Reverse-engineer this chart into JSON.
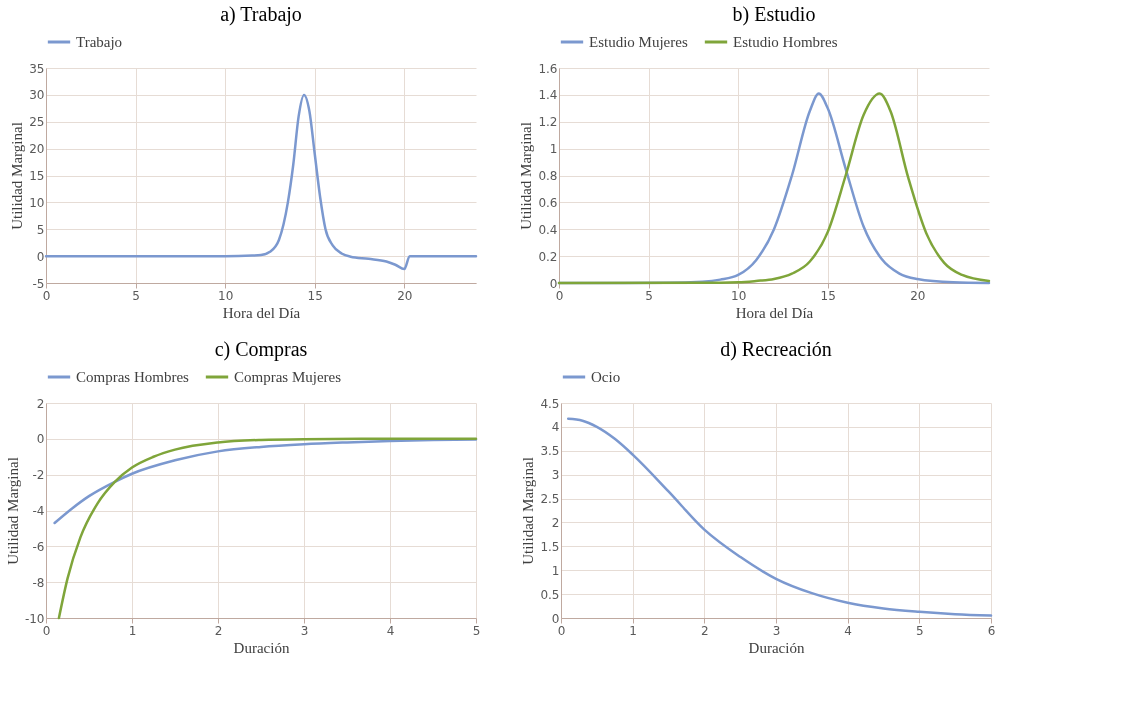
{
  "chart_data": [
    {
      "type": "line",
      "title": "a) Trabajo",
      "xlabel": "Hora del Día",
      "ylabel": "Utilidad Marginal",
      "xlim": [
        0,
        24
      ],
      "xticks": [
        0,
        5,
        10,
        15,
        20
      ],
      "ylim": [
        -5,
        35
      ],
      "yticks": [
        -5,
        0,
        5,
        10,
        15,
        20,
        25,
        30,
        35
      ],
      "grid": true,
      "legend": "top",
      "marker": "none",
      "line_style": "solid",
      "series": [
        {
          "name": "Trabajo",
          "color": "#7b98cf",
          "x": [
            0,
            5,
            10,
            11.5,
            12,
            12.5,
            13,
            13.5,
            13.8,
            14.1,
            14.4,
            14.7,
            15,
            15.3,
            15.6,
            16,
            16.5,
            17,
            18,
            19,
            19.5,
            20,
            20.3,
            24
          ],
          "values": [
            0,
            0,
            0,
            0.1,
            0.2,
            0.8,
            3,
            10,
            17,
            26,
            30,
            27,
            19,
            11,
            5,
            2,
            0.5,
            -0.1,
            -0.5,
            -1.0,
            -1.6,
            -2.4,
            0,
            0
          ]
        }
      ]
    },
    {
      "type": "line",
      "title": "b) Estudio",
      "xlabel": "Hora del Día",
      "ylabel": "Utilidad Marginal",
      "xlim": [
        0,
        24
      ],
      "xticks": [
        0,
        5,
        10,
        15,
        20
      ],
      "ylim": [
        0,
        1.6
      ],
      "yticks": [
        0,
        0.2,
        0.4,
        0.6,
        0.8,
        1,
        1.2,
        1.4,
        1.6
      ],
      "grid": true,
      "legend": "top",
      "marker": "none",
      "line_style": "solid",
      "series": [
        {
          "name": "Estudio Mujeres",
          "color": "#7b98cf",
          "x": [
            0,
            6,
            8,
            9,
            10,
            11,
            12,
            13,
            14,
            14.5,
            15,
            16,
            17,
            18,
            19,
            20,
            22,
            24
          ],
          "values": [
            0,
            0.002,
            0.01,
            0.025,
            0.06,
            0.17,
            0.4,
            0.8,
            1.28,
            1.41,
            1.3,
            0.85,
            0.42,
            0.18,
            0.07,
            0.03,
            0.005,
            0
          ]
        },
        {
          "name": "Estudio Hombres",
          "color": "#7fa53a",
          "x": [
            0,
            8,
            10,
            11,
            12,
            13,
            14,
            15,
            16,
            17,
            17.9,
            18.5,
            19.5,
            20.5,
            21.5,
            22.5,
            24
          ],
          "values": [
            0,
            0.001,
            0.005,
            0.015,
            0.03,
            0.07,
            0.16,
            0.38,
            0.8,
            1.25,
            1.41,
            1.28,
            0.78,
            0.37,
            0.15,
            0.06,
            0.015
          ]
        }
      ]
    },
    {
      "type": "line",
      "title": "c) Compras",
      "xlabel": "Duración",
      "ylabel": "Utilidad Marginal",
      "xlim": [
        0,
        5
      ],
      "xticks": [
        0,
        1,
        2,
        3,
        4,
        5
      ],
      "ylim": [
        -10,
        2
      ],
      "yticks": [
        -10,
        -8,
        -6,
        -4,
        -2,
        0,
        2
      ],
      "grid": true,
      "legend": "top",
      "marker": "none",
      "line_style": "solid",
      "series": [
        {
          "name": "Compras Hombres",
          "color": "#7b98cf",
          "x": [
            0.1,
            0.3,
            0.5,
            0.8,
            1,
            1.5,
            2,
            2.5,
            3,
            3.5,
            4,
            4.5,
            5
          ],
          "values": [
            -4.7,
            -3.9,
            -3.2,
            -2.4,
            -1.95,
            -1.2,
            -0.7,
            -0.45,
            -0.3,
            -0.2,
            -0.12,
            -0.07,
            -0.04
          ]
        },
        {
          "name": "Compras Mujeres",
          "color": "#7fa53a",
          "x": [
            0.15,
            0.25,
            0.4,
            0.6,
            0.8,
            1,
            1.25,
            1.5,
            2,
            2.5,
            3,
            4,
            5
          ],
          "values": [
            -10,
            -7.8,
            -5.5,
            -3.6,
            -2.4,
            -1.6,
            -1.0,
            -0.6,
            -0.2,
            -0.06,
            -0.02,
            0,
            0
          ]
        }
      ]
    },
    {
      "type": "line",
      "title": "d) Recreación",
      "xlabel": "Duración",
      "ylabel": "Utilidad Marginal",
      "xlim": [
        0,
        6
      ],
      "xticks": [
        0,
        1,
        2,
        3,
        4,
        5,
        6
      ],
      "ylim": [
        0,
        4.5
      ],
      "yticks": [
        0,
        0.5,
        1,
        1.5,
        2,
        2.5,
        3,
        3.5,
        4,
        4.5
      ],
      "grid": true,
      "legend": "top",
      "marker": "none",
      "line_style": "solid",
      "series": [
        {
          "name": "Ocio",
          "color": "#7b98cf",
          "x": [
            0.1,
            0.3,
            0.5,
            0.75,
            1,
            1.5,
            2,
            2.5,
            3,
            3.5,
            4,
            4.5,
            5,
            5.5,
            6
          ],
          "values": [
            4.17,
            4.13,
            4.0,
            3.75,
            3.42,
            2.65,
            1.85,
            1.28,
            0.82,
            0.52,
            0.32,
            0.2,
            0.13,
            0.08,
            0.05
          ]
        }
      ]
    }
  ]
}
